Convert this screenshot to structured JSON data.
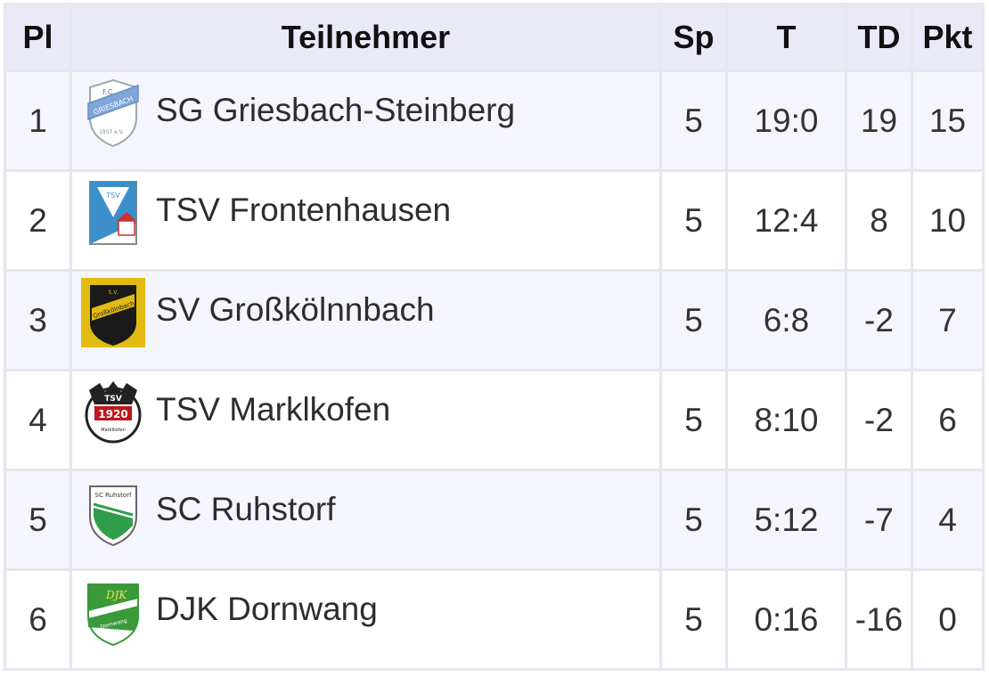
{
  "headers": {
    "pl": "Pl",
    "team": "Teilnehmer",
    "sp": "Sp",
    "t": "T",
    "td": "TD",
    "pkt": "Pkt"
  },
  "rows": [
    {
      "pl": "1",
      "team": "SG Griesbach-Steinberg",
      "sp": "5",
      "t": "19:0",
      "td": "19",
      "pkt": "15",
      "logo": "griesbach-crest"
    },
    {
      "pl": "2",
      "team": "TSV Frontenhausen",
      "sp": "5",
      "t": "12:4",
      "td": "8",
      "pkt": "10",
      "logo": "frontenhausen-crest"
    },
    {
      "pl": "3",
      "team": "SV Großkölnnbach",
      "sp": "5",
      "t": "6:8",
      "td": "-2",
      "pkt": "7",
      "logo": "grosskoellnbach-crest"
    },
    {
      "pl": "4",
      "team": "TSV Marklkofen",
      "sp": "5",
      "t": "8:10",
      "td": "-2",
      "pkt": "6",
      "logo": "marklkofen-crest"
    },
    {
      "pl": "5",
      "team": "SC Ruhstorf",
      "sp": "5",
      "t": "5:12",
      "td": "-7",
      "pkt": "4",
      "logo": "ruhstorf-crest"
    },
    {
      "pl": "6",
      "team": "DJK Dornwang",
      "sp": "5",
      "t": "0:16",
      "td": "-16",
      "pkt": "0",
      "logo": "dornwang-crest"
    }
  ],
  "colors": {
    "header_bg": "#e9e9f8",
    "row_odd": "#f5f5fd",
    "row_even": "#ffffff",
    "border": "#e6e6ee"
  }
}
